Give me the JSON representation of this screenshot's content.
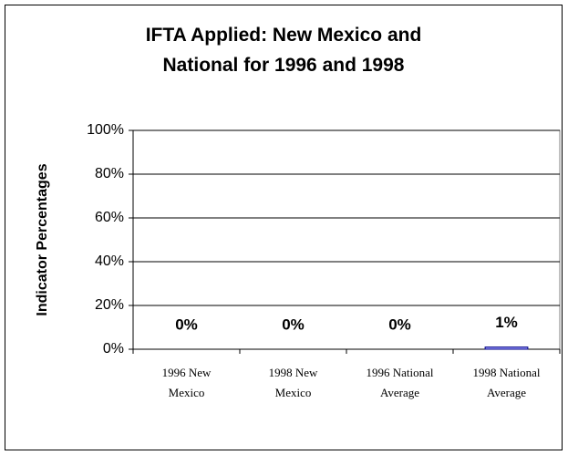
{
  "chart_data": {
    "type": "bar",
    "title": "IFTA Applied: New Mexico and National for 1996 and 1998",
    "y_label": "Indicator Percentages",
    "categories": [
      "1996 New Mexico",
      "1998 New Mexico",
      "1996 National Average",
      "1998 National Average"
    ],
    "values": [
      0,
      0,
      0,
      1
    ],
    "value_labels": [
      "0%",
      "0%",
      "0%",
      "1%"
    ],
    "color": "#9999ff",
    "ylim": [
      0,
      100
    ],
    "yticks": [
      {
        "value": 0,
        "label": "0%"
      },
      {
        "value": 20,
        "label": "20%"
      },
      {
        "value": 40,
        "label": "40%"
      },
      {
        "value": 60,
        "label": "60%"
      },
      {
        "value": 80,
        "label": "80%"
      },
      {
        "value": 100,
        "label": "100%"
      }
    ],
    "grid": true
  }
}
